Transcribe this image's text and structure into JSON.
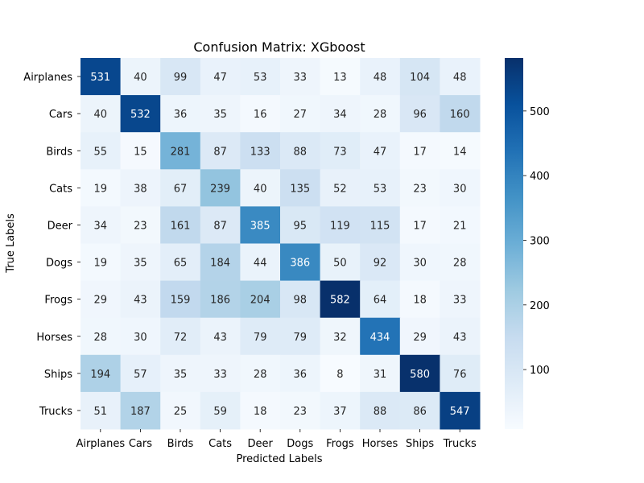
{
  "chart_data": {
    "type": "heatmap",
    "title": "Confusion Matrix: XGboost",
    "xlabel": "Predicted Labels",
    "ylabel": "True Labels",
    "x_categories": [
      "Airplanes",
      "Cars",
      "Birds",
      "Cats",
      "Deer",
      "Dogs",
      "Frogs",
      "Horses",
      "Ships",
      "Trucks"
    ],
    "y_categories": [
      "Airplanes",
      "Cars",
      "Birds",
      "Cats",
      "Deer",
      "Dogs",
      "Frogs",
      "Horses",
      "Ships",
      "Trucks"
    ],
    "values": [
      [
        531,
        40,
        99,
        47,
        53,
        33,
        13,
        48,
        104,
        48
      ],
      [
        40,
        532,
        36,
        35,
        16,
        27,
        34,
        28,
        96,
        160
      ],
      [
        55,
        15,
        281,
        87,
        133,
        88,
        73,
        47,
        17,
        14
      ],
      [
        19,
        38,
        67,
        239,
        40,
        135,
        52,
        53,
        23,
        30
      ],
      [
        34,
        23,
        161,
        87,
        385,
        95,
        119,
        115,
        17,
        21
      ],
      [
        19,
        35,
        65,
        184,
        44,
        386,
        50,
        92,
        30,
        28
      ],
      [
        29,
        43,
        159,
        186,
        204,
        98,
        582,
        64,
        18,
        33
      ],
      [
        28,
        30,
        72,
        43,
        79,
        79,
        32,
        434,
        29,
        43
      ],
      [
        194,
        57,
        35,
        33,
        28,
        36,
        8,
        31,
        580,
        76
      ],
      [
        51,
        187,
        25,
        59,
        18,
        23,
        37,
        88,
        86,
        547
      ]
    ],
    "colormap": "Blues",
    "colorbar": {
      "range": [
        8,
        582
      ],
      "ticks": [
        100,
        200,
        300,
        400,
        500
      ]
    },
    "grid": false
  }
}
